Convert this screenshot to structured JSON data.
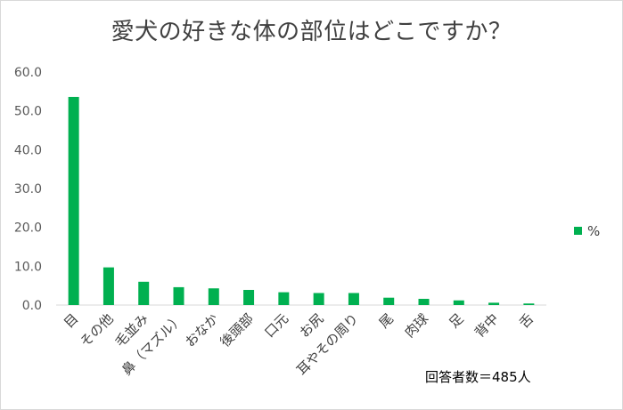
{
  "chart_data": {
    "type": "bar",
    "title": "愛犬の好きな体の部位はどこですか？",
    "categories": [
      "目",
      "その他",
      "毛並み",
      "鼻（マズル）",
      "おなか",
      "後頭部",
      "口元",
      "お尻",
      "耳やその周り",
      "尾",
      "肉球",
      "足",
      "背中",
      "舌"
    ],
    "series": [
      {
        "name": "%",
        "values": [
          53.6,
          9.7,
          6.0,
          4.6,
          4.3,
          3.9,
          3.3,
          3.1,
          3.1,
          1.9,
          1.6,
          1.2,
          0.6,
          0.4
        ]
      }
    ],
    "yticks": [
      "0.0",
      "10.0",
      "20.0",
      "30.0",
      "40.0",
      "50.0",
      "60.0"
    ],
    "ylim": [
      0,
      60
    ],
    "xlabel": "",
    "ylabel": "",
    "legend_position": "right",
    "grid": false,
    "color": "#00b050"
  },
  "note": "回答者数＝485人"
}
